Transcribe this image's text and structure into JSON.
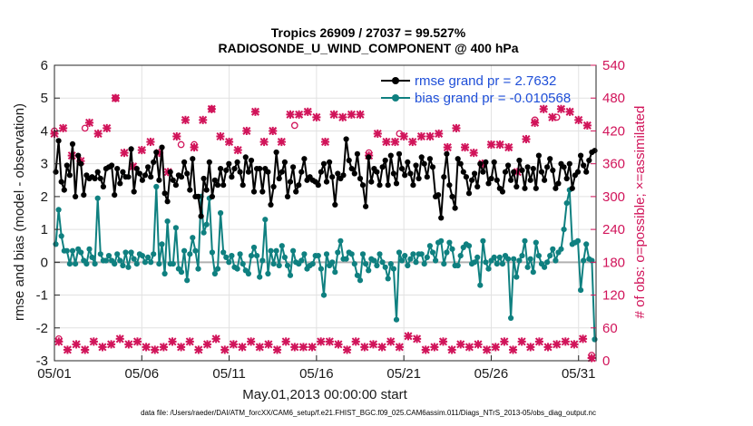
{
  "chart_data": {
    "type": "line",
    "title": "Tropics 26909 / 27037 = 99.527%",
    "subtitle": "RADIOSONDE_U_WIND_COMPONENT @ 400 hPa",
    "xlabel": "May.01,2013 00:00:00 start",
    "ylabel": "rmse and bias (model - observation)",
    "ylabel_right": "# of obs: o=possible; ×=assimilated",
    "xlim": [
      1,
      32
    ],
    "ylim": [
      -3,
      6
    ],
    "ylim_right": [
      0,
      540
    ],
    "x_ticks": [
      1,
      6,
      11,
      16,
      21,
      26,
      31
    ],
    "x_tick_labels": [
      "05/01",
      "05/06",
      "05/11",
      "05/16",
      "05/21",
      "05/26",
      "05/31"
    ],
    "y_ticks": [
      "-3",
      "-2",
      "-1",
      "0",
      "1",
      "2",
      "3",
      "4",
      "5",
      "6"
    ],
    "y_ticks_right": [
      "0",
      "60",
      "120",
      "180",
      "240",
      "300",
      "360",
      "420",
      "480",
      "540"
    ],
    "grid": true,
    "legend_position": "top-right",
    "colors": {
      "rmse": "#000000",
      "bias": "#0f8080",
      "obs": "#d1145a",
      "zero": "#b0b0b0"
    },
    "series": [
      {
        "name": "rmse grand pr = 2.7632",
        "axis": "left",
        "values": [
          2.75,
          3.7,
          2.45,
          2.2,
          2.95,
          2.65,
          3.6,
          2.0,
          3.25,
          3.0,
          2.05,
          2.65,
          2.55,
          2.6,
          2.55,
          2.75,
          2.55,
          2.3,
          2.85,
          2.9,
          2.95,
          2.05,
          2.85,
          2.4,
          2.75,
          2.6,
          2.6,
          3.45,
          2.15,
          2.85,
          2.7,
          2.5,
          2.65,
          2.9,
          2.6,
          3.05,
          3.35,
          2.5,
          3.5,
          2.1,
          1.85,
          2.75,
          2.5,
          2.35,
          2.65,
          2.6,
          3.05,
          2.7,
          2.2,
          3.15,
          2.0,
          2.0,
          1.4,
          2.55,
          2.2,
          3.05,
          2.0,
          2.5,
          2.35,
          2.85,
          2.35,
          2.8,
          3.0,
          2.6,
          2.85,
          3.05,
          2.75,
          2.35,
          3.2,
          2.75,
          3.1,
          2.15,
          2.85,
          2.85,
          2.15,
          2.85,
          2.75,
          1.75,
          2.3,
          3.35,
          2.55,
          2.75,
          3.05,
          2.0,
          2.45,
          2.9,
          2.15,
          2.35,
          2.75,
          3.15,
          2.5,
          2.6,
          2.5,
          2.45,
          2.35,
          2.75,
          3.0,
          2.45,
          3.05,
          2.6,
          1.75,
          2.7,
          2.55,
          2.65,
          3.75,
          3.1,
          2.85,
          2.7,
          3.3,
          2.55,
          2.35,
          1.7,
          3.2,
          2.45,
          2.85,
          2.75,
          2.35,
          2.9,
          3.1,
          2.35,
          3.25,
          2.7,
          2.4,
          3.3,
          2.85,
          2.65,
          3.05,
          2.7,
          2.35,
          2.95,
          2.55,
          3.2,
          3.0,
          2.6,
          3.15,
          2.9,
          2.0,
          2.05,
          1.35,
          2.6,
          3.3,
          2.35,
          2.0,
          1.65,
          3.15,
          3.0,
          2.75,
          2.6,
          2.1,
          2.5,
          2.7,
          2.3,
          3.0,
          2.75,
          3.05,
          2.4,
          2.55,
          3.05,
          2.5,
          2.25,
          2.15,
          2.75,
          2.95,
          2.5,
          2.75,
          2.3,
          3.1,
          2.8,
          2.25,
          2.9,
          2.5,
          2.85,
          2.25,
          3.25,
          2.75,
          2.5,
          2.9,
          3.15,
          2.8,
          2.25,
          2.4,
          3.0,
          2.9,
          2.55,
          3.0,
          2.25,
          2.65,
          2.75,
          3.25,
          2.95,
          2.75,
          3.1,
          3.35,
          3.4
        ]
      },
      {
        "name": "bias grand pr = -0.010568",
        "axis": "left",
        "values": [
          0.55,
          1.6,
          0.8,
          0.35,
          0.35,
          -0.05,
          0.35,
          -0.05,
          0.4,
          0.3,
          0.05,
          -0.05,
          0.4,
          0.15,
          -0.05,
          1.95,
          0.25,
          0.05,
          0.05,
          0.2,
          0.05,
          -0.05,
          0.25,
          0.05,
          -0.1,
          0.3,
          -0.15,
          0.3,
          0.1,
          -0.05,
          0.25,
          0.2,
          0.0,
          0.15,
          0.0,
          0.25,
          2.3,
          -0.05,
          0.55,
          -0.35,
          1.25,
          -0.05,
          -0.05,
          1.05,
          -0.2,
          -0.3,
          0.35,
          -0.55,
          0.25,
          0.75,
          0.35,
          -0.2,
          2.0,
          0.9,
          1.15,
          1.95,
          0.3,
          -0.35,
          -0.2,
          1.5,
          0.3,
          0.15,
          0.0,
          0.2,
          -0.15,
          -0.2,
          0.25,
          -0.05,
          -0.25,
          -0.35,
          0.2,
          0.45,
          0.2,
          -0.45,
          0.05,
          1.3,
          -0.35,
          0.35,
          -0.05,
          0.35,
          -0.1,
          0.5,
          0.15,
          -0.1,
          -0.4,
          0.35,
          0.0,
          -0.05,
          0.05,
          0.25,
          -0.2,
          -0.1,
          -0.05,
          0.2,
          0.2,
          -0.2,
          -1.0,
          0.25,
          -0.1,
          0.0,
          -0.3,
          0.3,
          0.65,
          0.1,
          0.1,
          0.3,
          0.25,
          -0.05,
          -0.4,
          -0.55,
          0.25,
          -0.05,
          -0.25,
          0.1,
          0.05,
          -0.1,
          0.25,
          0.0,
          -0.15,
          -0.5,
          -0.05,
          -0.2,
          -1.75,
          0.3,
          0.05,
          0.2,
          -0.1,
          0.1,
          0.25,
          0.0,
          0.25,
          0.25,
          -0.05,
          0.15,
          0.5,
          0.3,
          0.05,
          0.6,
          0.65,
          -0.05,
          0.3,
          0.6,
          0.4,
          -0.1,
          -0.1,
          0.2,
          0.45,
          0.55,
          0.5,
          -0.05,
          0.0,
          0.15,
          -0.7,
          0.65,
          0.0,
          -0.2,
          0.05,
          0.15,
          -0.05,
          0.15,
          -0.05,
          0.2,
          0.1,
          -1.7,
          0.1,
          -0.45,
          0.05,
          0.2,
          0.65,
          -0.15,
          0.1,
          -0.3,
          0.6,
          0.2,
          -0.05,
          -0.15,
          0.0,
          0.2,
          0.4,
          0.05,
          0.3,
          0.4,
          1.0,
          1.8,
          2.2,
          0.55,
          0.6,
          0.65,
          -0.85,
          0.05,
          0.55,
          0.1,
          0.05,
          -2.35
        ]
      },
      {
        "name": "obs assimilated",
        "axis": "right",
        "values": [
          [
            1.0,
            415
          ],
          [
            1.25,
            35
          ],
          [
            1.5,
            425
          ],
          [
            1.75,
            20
          ],
          [
            2.0,
            375
          ],
          [
            2.25,
            30
          ],
          [
            2.5,
            365
          ],
          [
            2.75,
            20
          ],
          [
            3.0,
            435
          ],
          [
            3.25,
            35
          ],
          [
            3.5,
            415
          ],
          [
            3.75,
            25
          ],
          [
            4.0,
            425
          ],
          [
            4.25,
            30
          ],
          [
            4.5,
            480
          ],
          [
            4.75,
            40
          ],
          [
            5.0,
            380
          ],
          [
            5.25,
            30
          ],
          [
            5.5,
            355
          ],
          [
            5.75,
            35
          ],
          [
            6.0,
            385
          ],
          [
            6.25,
            25
          ],
          [
            6.5,
            400
          ],
          [
            6.75,
            20
          ],
          [
            7.0,
            380
          ],
          [
            7.25,
            25
          ],
          [
            7.5,
            345
          ],
          [
            7.75,
            35
          ],
          [
            8.0,
            410
          ],
          [
            8.25,
            25
          ],
          [
            8.5,
            440
          ],
          [
            8.75,
            35
          ],
          [
            9.0,
            390
          ],
          [
            9.25,
            20
          ],
          [
            9.5,
            440
          ],
          [
            9.75,
            30
          ],
          [
            10.0,
            460
          ],
          [
            10.25,
            40
          ],
          [
            10.5,
            410
          ],
          [
            10.75,
            20
          ],
          [
            11.0,
            400
          ],
          [
            11.25,
            30
          ],
          [
            11.5,
            385
          ],
          [
            11.75,
            25
          ],
          [
            12.0,
            420
          ],
          [
            12.25,
            35
          ],
          [
            12.5,
            455
          ],
          [
            12.75,
            25
          ],
          [
            13.0,
            400
          ],
          [
            13.25,
            30
          ],
          [
            13.5,
            420
          ],
          [
            13.75,
            20
          ],
          [
            14.0,
            400
          ],
          [
            14.25,
            35
          ],
          [
            14.5,
            450
          ],
          [
            14.75,
            25
          ],
          [
            15.0,
            450
          ],
          [
            15.25,
            25
          ],
          [
            15.5,
            455
          ],
          [
            15.75,
            25
          ],
          [
            16.0,
            445
          ],
          [
            16.25,
            35
          ],
          [
            16.5,
            400
          ],
          [
            16.75,
            35
          ],
          [
            17.0,
            450
          ],
          [
            17.25,
            30
          ],
          [
            17.5,
            445
          ],
          [
            17.75,
            20
          ],
          [
            18.0,
            450
          ],
          [
            18.25,
            35
          ],
          [
            18.5,
            450
          ],
          [
            18.75,
            25
          ],
          [
            19.0,
            375
          ],
          [
            19.25,
            30
          ],
          [
            19.5,
            415
          ],
          [
            19.75,
            25
          ],
          [
            20.0,
            400
          ],
          [
            20.25,
            35
          ],
          [
            20.5,
            400
          ],
          [
            20.75,
            25
          ],
          [
            21.0,
            410
          ],
          [
            21.25,
            45
          ],
          [
            21.5,
            400
          ],
          [
            21.75,
            40
          ],
          [
            22.0,
            410
          ],
          [
            22.25,
            20
          ],
          [
            22.5,
            410
          ],
          [
            22.75,
            25
          ],
          [
            23.0,
            415
          ],
          [
            23.25,
            35
          ],
          [
            23.5,
            390
          ],
          [
            23.75,
            20
          ],
          [
            24.0,
            425
          ],
          [
            24.25,
            30
          ],
          [
            24.5,
            390
          ],
          [
            24.75,
            25
          ],
          [
            25.0,
            380
          ],
          [
            25.25,
            30
          ],
          [
            25.5,
            360
          ],
          [
            25.75,
            20
          ],
          [
            26.0,
            395
          ],
          [
            26.25,
            25
          ],
          [
            26.5,
            395
          ],
          [
            26.75,
            35
          ],
          [
            27.0,
            390
          ],
          [
            27.25,
            20
          ],
          [
            27.5,
            345
          ],
          [
            27.75,
            35
          ],
          [
            28.0,
            405
          ],
          [
            28.25,
            25
          ],
          [
            28.5,
            435
          ],
          [
            28.75,
            35
          ],
          [
            29.0,
            460
          ],
          [
            29.25,
            25
          ],
          [
            29.5,
            445
          ],
          [
            29.75,
            30
          ],
          [
            30.0,
            460
          ],
          [
            30.25,
            35
          ],
          [
            30.5,
            455
          ],
          [
            30.75,
            30
          ],
          [
            31.0,
            440
          ],
          [
            31.25,
            40
          ],
          [
            31.5,
            430
          ],
          [
            31.75,
            5
          ]
        ]
      },
      {
        "name": "obs possible",
        "axis": "right",
        "values": [
          [
            1.0,
            420
          ],
          [
            1.25,
            40
          ],
          [
            2.75,
            425
          ],
          [
            4.5,
            480
          ],
          [
            8.25,
            395
          ],
          [
            9.0,
            395
          ],
          [
            10.0,
            460
          ],
          [
            14.75,
            430
          ],
          [
            19.0,
            380
          ],
          [
            20.75,
            415
          ],
          [
            28.5,
            440
          ],
          [
            29.75,
            445
          ],
          [
            31.75,
            10
          ]
        ]
      }
    ]
  },
  "legend": {
    "rmse_label": "rmse grand pr = 2.7632",
    "bias_label": "bias grand pr = -0.010568"
  },
  "footer": "data file: /Users/raeder/DAI/ATM_forcXX/CAM6_setup/f.e21.FHIST_BGC.f09_025.CAM6assim.011/Diags_NTrS_2013-05/obs_diag_output.nc"
}
